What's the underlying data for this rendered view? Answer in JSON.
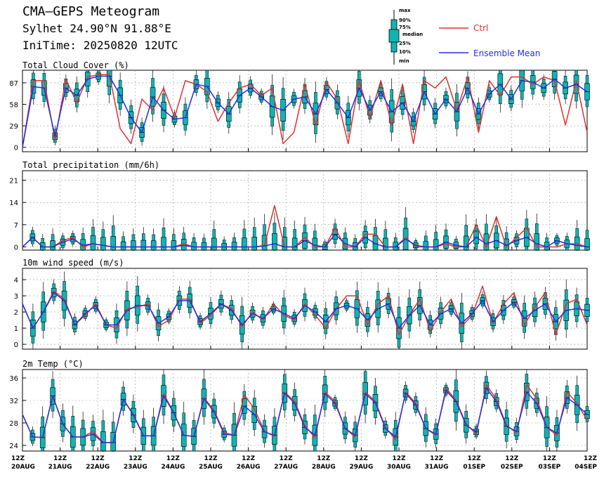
{
  "header": {
    "title": "CMA–GEPS Meteogram",
    "location": "Sylhet 24.90°N 91.88°E",
    "init_time": "IniTime: 20250820 12UTC"
  },
  "legend": {
    "box_key": [
      "max",
      "90%",
      "75%",
      "median",
      "25%",
      "10%",
      "min"
    ],
    "ctrl": "Ctrl",
    "mean": "Ensemble Mean"
  },
  "colors": {
    "ctrl": "#e03030",
    "mean": "#2030e0",
    "box": "#12b3b3",
    "grid": "#999999"
  },
  "x_axis": {
    "tick_hour": "12Z",
    "tick_dates": [
      "20AUG",
      "21AUG",
      "22AUG",
      "23AUG",
      "24AUG",
      "25AUG",
      "26AUG",
      "27AUG",
      "28AUG",
      "29AUG",
      "30AUG",
      "31AUG",
      "01SEP",
      "02SEP",
      "03SEP",
      "04SEP"
    ]
  },
  "chart_data": [
    {
      "type": "line",
      "title": "Total Cloud Cover (%)",
      "yticks": [
        0,
        29,
        58,
        87
      ],
      "ylim": [
        -6,
        104
      ],
      "grid": true,
      "x": "6-hourly steps from 20AUG 12Z to 04SEP 12Z",
      "series": [
        {
          "name": "Ctrl",
          "values": [
            0,
            90,
            90,
            10,
            92,
            60,
            95,
            98,
            98,
            25,
            5,
            65,
            50,
            80,
            40,
            90,
            85,
            75,
            35,
            60,
            80,
            85,
            70,
            80,
            5,
            20,
            85,
            30,
            88,
            65,
            5,
            90,
            40,
            90,
            30,
            85,
            5,
            90,
            80,
            95,
            50,
            95,
            20,
            90,
            70,
            95,
            95,
            85,
            95,
            90,
            30,
            90,
            20
          ]
        },
        {
          "name": "Ensemble Mean",
          "values": [
            0,
            82,
            80,
            15,
            80,
            70,
            92,
            96,
            96,
            70,
            40,
            20,
            68,
            50,
            38,
            40,
            85,
            82,
            60,
            45,
            70,
            80,
            68,
            55,
            50,
            65,
            68,
            45,
            78,
            60,
            40,
            80,
            50,
            75,
            48,
            60,
            35,
            75,
            45,
            65,
            48,
            80,
            45,
            72,
            85,
            65,
            90,
            88,
            80,
            92,
            80,
            85,
            75
          ]
        }
      ]
    },
    {
      "type": "line",
      "title": "Total precipitation (mm/6h)",
      "yticks": [
        0,
        7,
        14,
        21
      ],
      "ylim": [
        -1,
        24
      ],
      "grid": true,
      "series": [
        {
          "name": "Ctrl",
          "values": [
            0,
            3,
            0,
            0,
            2,
            3,
            0,
            1,
            0.5,
            0,
            0,
            0,
            0,
            0,
            0,
            0,
            1,
            0,
            0,
            0,
            0,
            0,
            0,
            0,
            0.5,
            13,
            0,
            0,
            3,
            0,
            0,
            6,
            0,
            0,
            4,
            4,
            0,
            0,
            3,
            0,
            0,
            0,
            1,
            0,
            0,
            7,
            0,
            9.5,
            0,
            3,
            6,
            0,
            0,
            0,
            1,
            1,
            0
          ]
        },
        {
          "name": "Ensemble Mean",
          "values": [
            0,
            3,
            0,
            0,
            1.5,
            2.5,
            0.5,
            1,
            0.5,
            0,
            0,
            0,
            0,
            0,
            0,
            0,
            0.5,
            0,
            0,
            0,
            0,
            0,
            0,
            0,
            0.3,
            1,
            0,
            0,
            2,
            0.5,
            0,
            4,
            1,
            0,
            3,
            1,
            0,
            0,
            2.5,
            0.5,
            0,
            0,
            1.5,
            0.5,
            0,
            3,
            1,
            2,
            0.5,
            2,
            3,
            1,
            0,
            2,
            1,
            0.5,
            0
          ]
        }
      ]
    },
    {
      "type": "line",
      "title": "10m wind speed (m/s)",
      "yticks": [
        0,
        1,
        2,
        3,
        4
      ],
      "ylim": [
        -0.3,
        4.7
      ],
      "grid": true,
      "series": [
        {
          "name": "Ctrl",
          "values": [
            2.5,
            1,
            2,
            3.3,
            2.8,
            1.2,
            1.8,
            2.5,
            1.2,
            1,
            2.2,
            2.3,
            2.5,
            1.1,
            1.5,
            2.8,
            2.8,
            1.3,
            1.8,
            2.5,
            2.2,
            1.1,
            2,
            1.5,
            2.5,
            1.8,
            1.5,
            2.5,
            1.8,
            1,
            2.2,
            3,
            3,
            1.2,
            2.5,
            3,
            0.6,
            1.8,
            2.8,
            0.8,
            2,
            2.8,
            1.1,
            1.8,
            3.6,
            1.3,
            2.5,
            3.2,
            1.2,
            2.3,
            3.2,
            0.6,
            2.5,
            2.8,
            1.2
          ]
        },
        {
          "name": "Ensemble Mean",
          "values": [
            2.5,
            1,
            2,
            3.2,
            2.7,
            1.2,
            1.9,
            2.4,
            1.2,
            1.2,
            2.1,
            2.4,
            2.4,
            1.3,
            1.7,
            2.7,
            2.7,
            1.4,
            1.9,
            2.5,
            2.1,
            1.2,
            1.9,
            1.6,
            2.2,
            1.9,
            1.6,
            2.4,
            2,
            1.4,
            2.2,
            2.4,
            2.2,
            1.5,
            2.2,
            2.5,
            1,
            1.8,
            2.4,
            1.2,
            1.9,
            2.2,
            1.3,
            1.9,
            2.7,
            1.4,
            2.1,
            2.6,
            1.6,
            2.1,
            2.5,
            1.4,
            2.1,
            2.2,
            2.1
          ]
        }
      ]
    },
    {
      "type": "line",
      "title": "2m Temp (°C)",
      "yticks": [
        24,
        28,
        32,
        36
      ],
      "ylim": [
        23,
        37.5
      ],
      "grid": true,
      "series": [
        {
          "name": "Ctrl",
          "values": [
            29.5,
            25.5,
            25.4,
            32.8,
            27.8,
            25.5,
            25.5,
            26.5,
            24.5,
            24.5,
            32.2,
            29.5,
            25.7,
            25.7,
            33.2,
            29.8,
            25.8,
            25.6,
            32.5,
            30.2,
            26.3,
            25.8,
            33,
            30.5,
            26.5,
            25.6,
            33.5,
            31.8,
            27.5,
            25.4,
            33.5,
            31.8,
            27,
            25.5,
            33.5,
            31.8,
            27.2,
            25,
            33.5,
            31.5,
            27,
            25.8,
            34.2,
            32,
            27.8,
            26,
            34.8,
            32.2,
            27.6,
            26.2,
            34.8,
            32.3,
            27.2,
            25.8,
            33.5,
            31.5,
            28.5
          ]
        },
        {
          "name": "Ensemble Mean",
          "values": [
            29.5,
            25.5,
            25.4,
            32.8,
            27.8,
            25.5,
            25.5,
            26,
            24.5,
            24.5,
            32.2,
            29.4,
            25.7,
            25.7,
            32.8,
            29.8,
            25.8,
            25.6,
            32.3,
            30,
            26,
            25.8,
            31,
            29.5,
            26.4,
            25.8,
            33.3,
            31.5,
            27.2,
            25.8,
            33.2,
            31.5,
            27,
            25.8,
            33.2,
            31.6,
            27,
            25.5,
            33.3,
            31.2,
            27,
            26,
            33.8,
            31.8,
            27.6,
            26.4,
            34.2,
            31.8,
            27.4,
            26.5,
            33.5,
            31.5,
            27.2,
            26.2,
            32.5,
            31.2,
            29.5
          ]
        }
      ]
    }
  ]
}
